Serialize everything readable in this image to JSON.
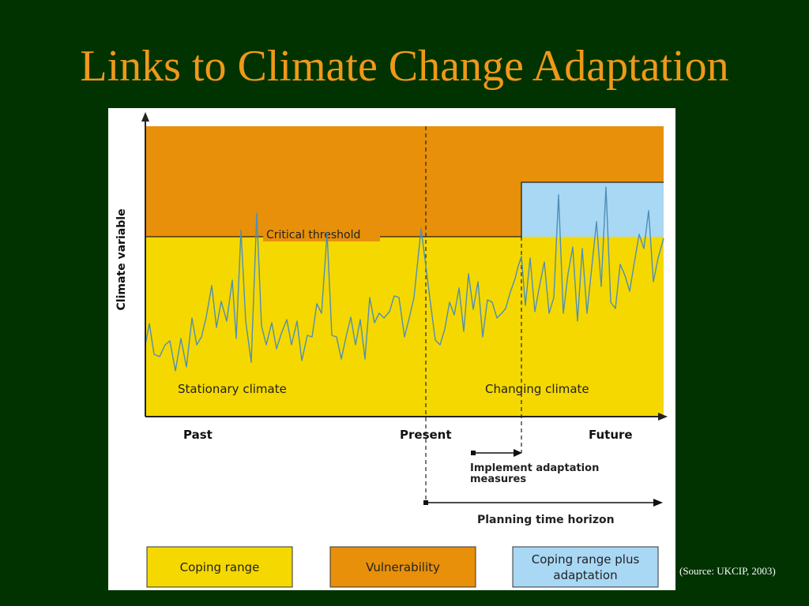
{
  "slide": {
    "title": "Links to Climate Change Adaptation",
    "source": "(Source: UKCIP, 2003)"
  },
  "colors": {
    "background": "#003300",
    "title": "#f09819",
    "coping_range": "#f5d800",
    "vulnerability": "#e8900a",
    "coping_plus_adaptation": "#a8d8f4",
    "climate_line": "#4f8fb5"
  },
  "diagram": {
    "y_axis_label": "Climate variable",
    "threshold_label": "Critical threshold",
    "region_labels": {
      "stationary": "Stationary climate",
      "changing": "Changing climate"
    },
    "time_labels": {
      "past": "Past",
      "present": "Present",
      "future": "Future"
    },
    "implement_label_line1": "Implement adaptation",
    "implement_label_line2": "measures",
    "planning_label": "Planning time horizon"
  },
  "legend": {
    "coping": "Coping range",
    "vulnerability": "Vulnerability",
    "adaptation_line1": "Coping range plus",
    "adaptation_line2": "adaptation"
  }
}
